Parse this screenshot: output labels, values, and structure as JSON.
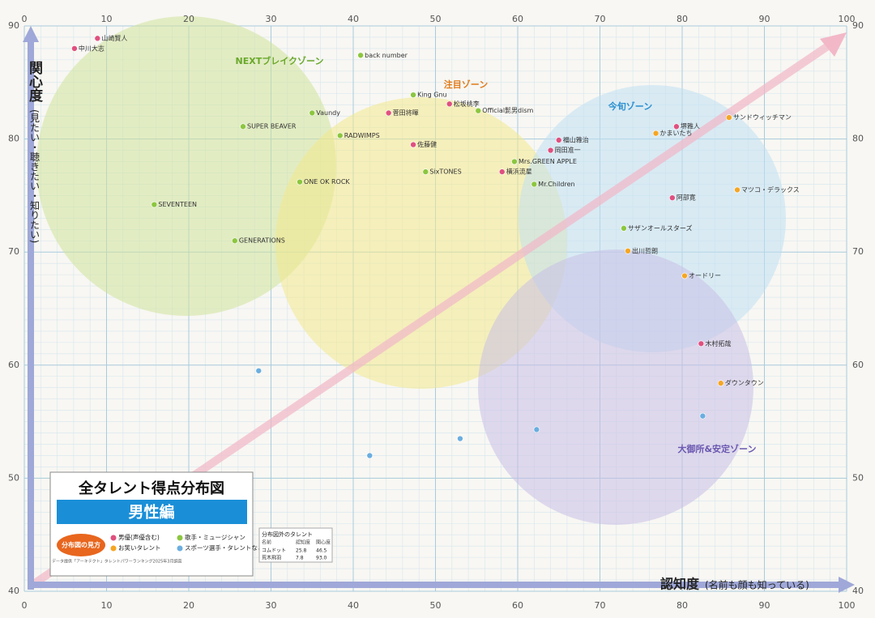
{
  "chart_data": {
    "type": "scatter",
    "xlabel": "認知度",
    "xlabel_note": "(名前も顔も知っている)",
    "ylabel": "関心度",
    "ylabel_note": "(見たい・聴きたい・知りたい)",
    "xlim": [
      0,
      100
    ],
    "ylim": [
      40,
      90
    ],
    "xticks": [
      0,
      10,
      20,
      30,
      40,
      50,
      60,
      70,
      80,
      90,
      100
    ],
    "yticks": [
      40,
      50,
      60,
      70,
      80,
      90
    ],
    "grid": true,
    "zones": [
      {
        "label": "NEXTブレイクゾーン",
        "color": "#cfe49a"
      },
      {
        "label": "注目ゾーン",
        "color": "#f3ea8c"
      },
      {
        "label": "今旬ゾーン",
        "color": "#bfe0f3"
      },
      {
        "label": "大御所&安定ゾーン",
        "color": "#c9c0e6"
      }
    ],
    "series": [
      {
        "name": "男優(声優含む)",
        "color": "#e0507f",
        "x": [
          8.9,
          6.1,
          44.3,
          51.7,
          47.3,
          58.1,
          65.0,
          64.0,
          78.8,
          79.3,
          82.3
        ],
        "y": [
          88.9,
          88.0,
          82.3,
          83.1,
          79.5,
          77.1,
          79.9,
          79.0,
          74.8,
          81.1,
          61.9
        ],
        "labels": [
          "山崎賢人",
          "中川大志",
          "菅田将暉",
          "松坂桃李",
          "佐藤健",
          "横浜流星",
          "福山雅治",
          "岡田准一",
          "阿部寛",
          "堺雅人",
          "木村拓哉"
        ]
      },
      {
        "name": "歌手・ミュージシャン",
        "color": "#8cc63f",
        "x": [
          40.9,
          38.4,
          33.5,
          15.8,
          59.6,
          62.0,
          25.6,
          26.6,
          55.2,
          47.3,
          72.9,
          48.8,
          35.0
        ],
        "y": [
          87.4,
          80.3,
          76.2,
          74.2,
          78.0,
          76.0,
          71.0,
          81.1,
          82.5,
          83.9,
          72.1,
          77.1,
          82.3
        ],
        "labels": [
          "back number",
          "RADWIMPS",
          "ONE OK ROCK",
          "SEVENTEEN",
          "Mrs.GREEN APPLE",
          "Mr.Children",
          "GENERATIONS",
          "SUPER BEAVER",
          "Official髭男dism",
          "King Gnu",
          "サザンオールスターズ",
          "SixTONES",
          "Vaundy"
        ]
      },
      {
        "name": "お笑いタレント",
        "color": "#f5a623",
        "x": [
          85.7,
          76.8,
          84.7,
          73.4,
          80.3,
          86.7
        ],
        "y": [
          81.9,
          80.5,
          58.4,
          70.1,
          67.9,
          75.5
        ],
        "labels": [
          "サンドウィッチマン",
          "かまいたち",
          "ダウンタウン",
          "出川哲朗",
          "オードリー",
          "マツコ・デラックス"
        ]
      },
      {
        "name": "スポーツ選手・タレントなど",
        "color": "#6aaee0",
        "x": [
          28.5,
          42.0,
          53.0,
          62.3,
          82.5
        ],
        "y": [
          59.5,
          52.0,
          53.5,
          54.3,
          55.5
        ]
      }
    ],
    "legend_title": "分布図の見方",
    "chart_title": "全タレント得点分布図",
    "chart_subtitle": "男性編",
    "source": "データ提供「アーキテクト」タレントパワーランキング2025年3月調査",
    "outside_table": {
      "title": "分布図外のタレント",
      "header": [
        "名前",
        "認知度",
        "関心度"
      ],
      "rows": [
        [
          "コムドット",
          "25.8",
          "46.5"
        ],
        [
          "荒木飛羽",
          "7.8",
          "93.0"
        ]
      ]
    }
  }
}
